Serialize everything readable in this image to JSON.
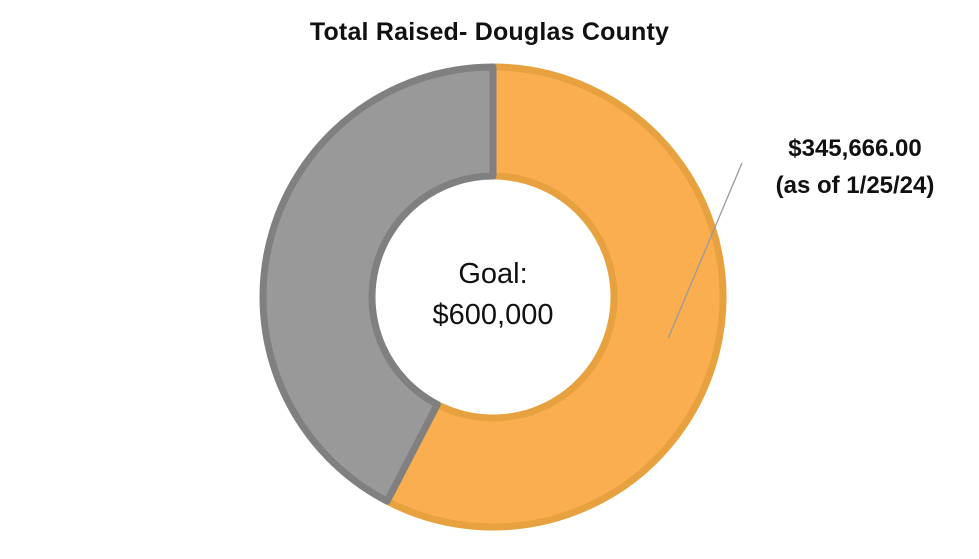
{
  "chart_data": {
    "type": "pie",
    "title": "Total Raised- Douglas County",
    "center_label": [
      "Goal:",
      "$600,000"
    ],
    "goal": 600000,
    "slices": [
      {
        "label": "$345,666.00",
        "note": "(as of 1/25/24)",
        "value": 345666,
        "color": "#FBAE4F",
        "border": "#E8A13F"
      },
      {
        "label": "",
        "value": 254334,
        "color": "#999999",
        "border": "#808080"
      }
    ]
  }
}
